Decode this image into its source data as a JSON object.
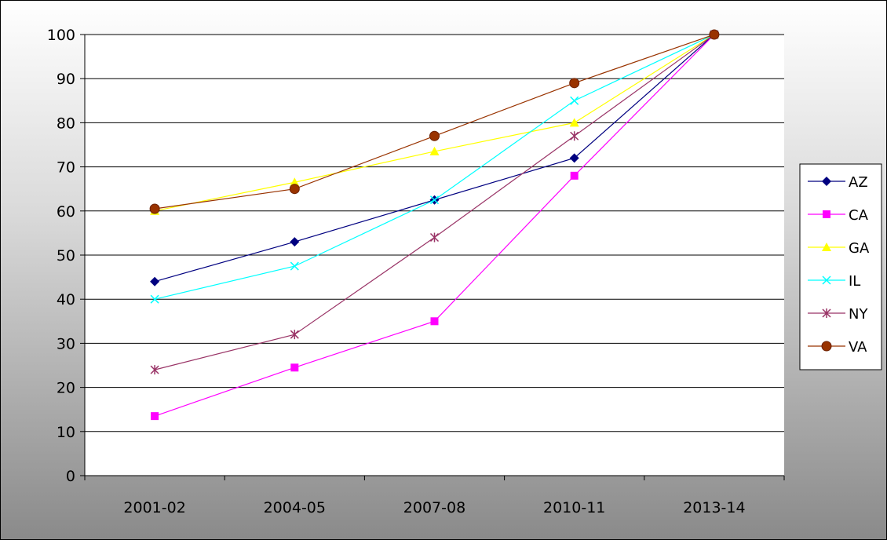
{
  "chart_data": {
    "type": "line",
    "title": "",
    "xlabel": "",
    "ylabel": "",
    "categories": [
      "2001-02",
      "2004-05",
      "2007-08",
      "2010-11",
      "2013-14"
    ],
    "ylim": [
      0,
      100
    ],
    "yticks": [
      0,
      10,
      20,
      30,
      40,
      50,
      60,
      70,
      80,
      90,
      100
    ],
    "grid": "horizontal",
    "legend_position": "right",
    "series": [
      {
        "name": "AZ",
        "values": [
          44,
          53,
          62.5,
          72,
          100
        ],
        "color": "#000080",
        "marker": "diamond"
      },
      {
        "name": "CA",
        "values": [
          13.5,
          24.5,
          35,
          68,
          100
        ],
        "color": "#FF00FF",
        "marker": "square"
      },
      {
        "name": "GA",
        "values": [
          60,
          66.5,
          73.5,
          80,
          100
        ],
        "color": "#FFFF00",
        "marker": "triangle"
      },
      {
        "name": "IL",
        "values": [
          40,
          47.5,
          62.5,
          85,
          100
        ],
        "color": "#00FFFF",
        "marker": "x"
      },
      {
        "name": "NY",
        "values": [
          24,
          32,
          54,
          77,
          100
        ],
        "color": "#993366",
        "marker": "star"
      },
      {
        "name": "VA",
        "values": [
          60.5,
          65,
          77,
          89,
          100
        ],
        "color": "#993300",
        "marker": "circle"
      }
    ]
  }
}
